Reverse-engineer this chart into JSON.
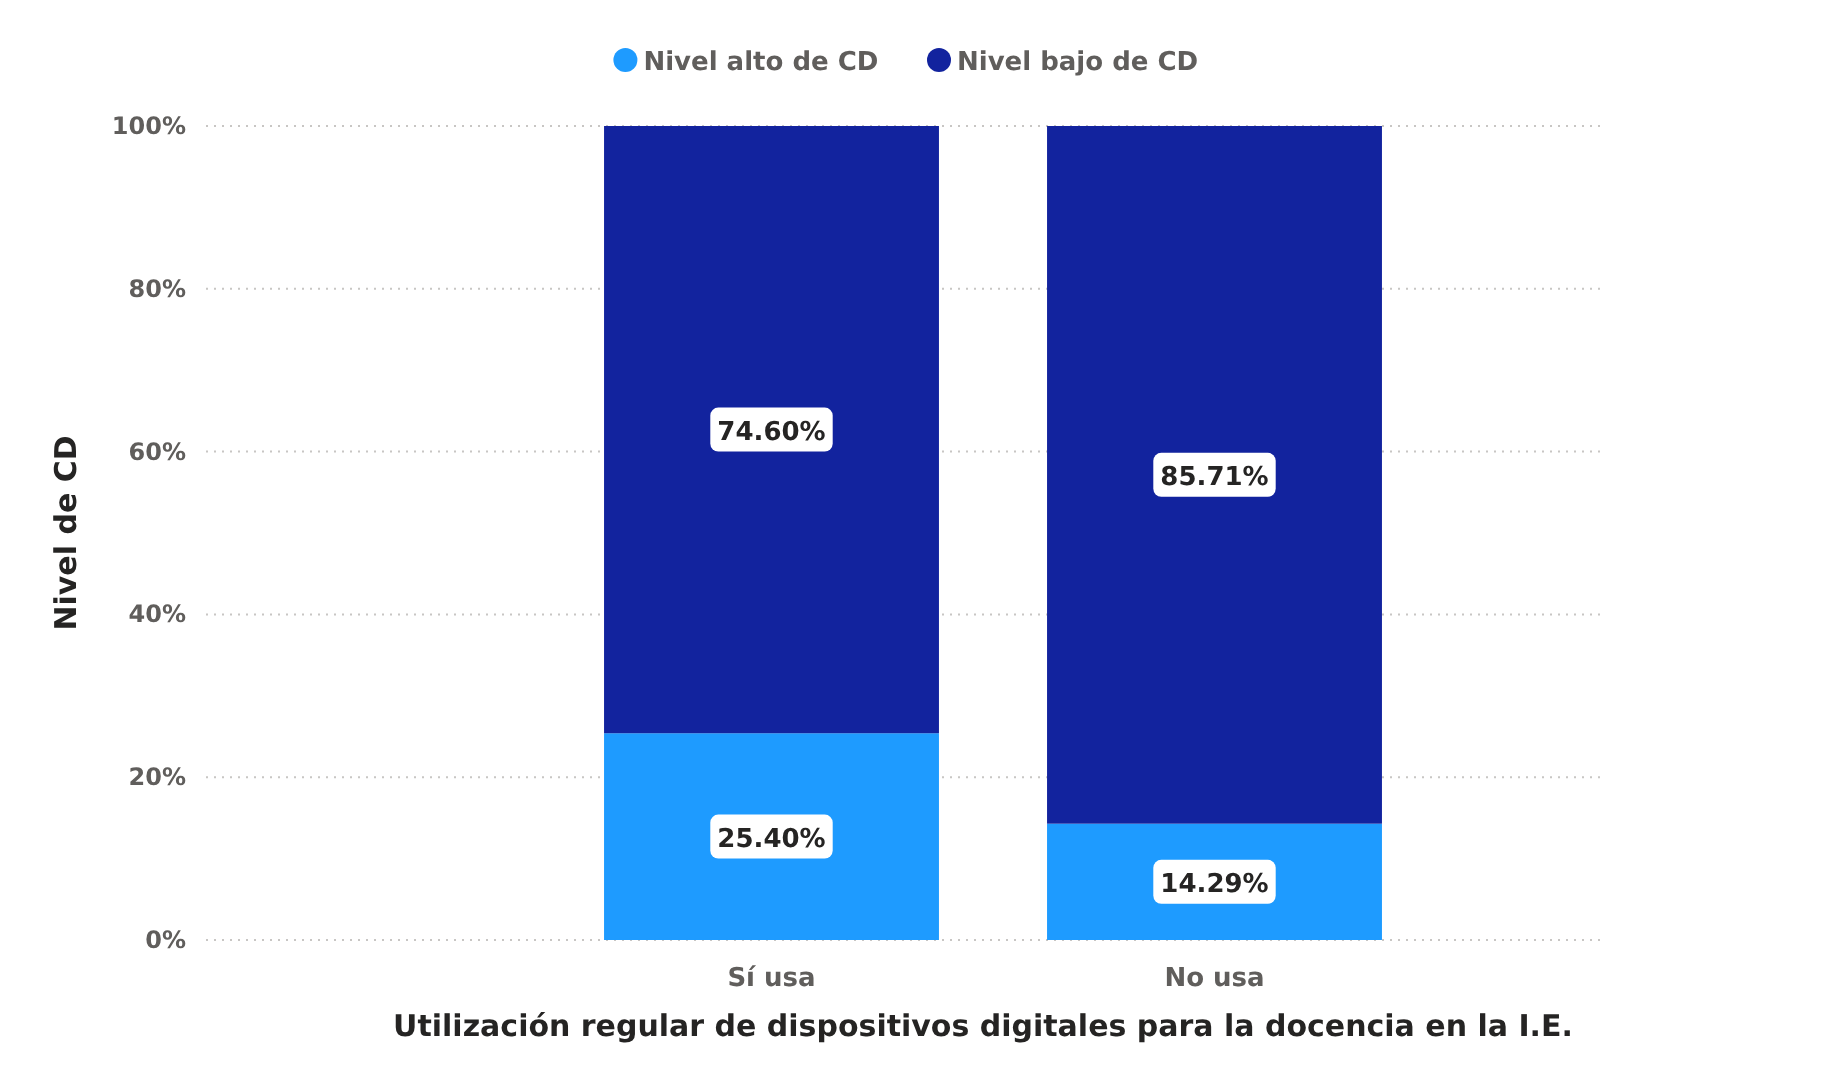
{
  "chart_data": {
    "type": "bar",
    "stacked": true,
    "xlabel": "Utilización regular de dispositivos digitales para la docencia en la I.E.",
    "ylabel": "Nivel de CD",
    "categories": [
      "Sí usa",
      "No usa"
    ],
    "series": [
      {
        "name": "Nivel alto de CD",
        "color": "#1e9bff",
        "values": [
          25.4,
          14.29
        ],
        "value_labels": [
          "25.40%",
          "14.29%"
        ]
      },
      {
        "name": "Nivel bajo de CD",
        "color": "#12239e",
        "values": [
          74.6,
          85.71
        ],
        "value_labels": [
          "74.60%",
          "85.71%"
        ]
      }
    ],
    "ylim": [
      0,
      100
    ],
    "yticks": [
      {
        "value": 0,
        "label": "0%"
      },
      {
        "value": 20,
        "label": "20%"
      },
      {
        "value": 40,
        "label": "40%"
      },
      {
        "value": 60,
        "label": "60%"
      },
      {
        "value": 80,
        "label": "80%"
      },
      {
        "value": 100,
        "label": "100%"
      }
    ],
    "grid": "y",
    "legend": "top"
  }
}
